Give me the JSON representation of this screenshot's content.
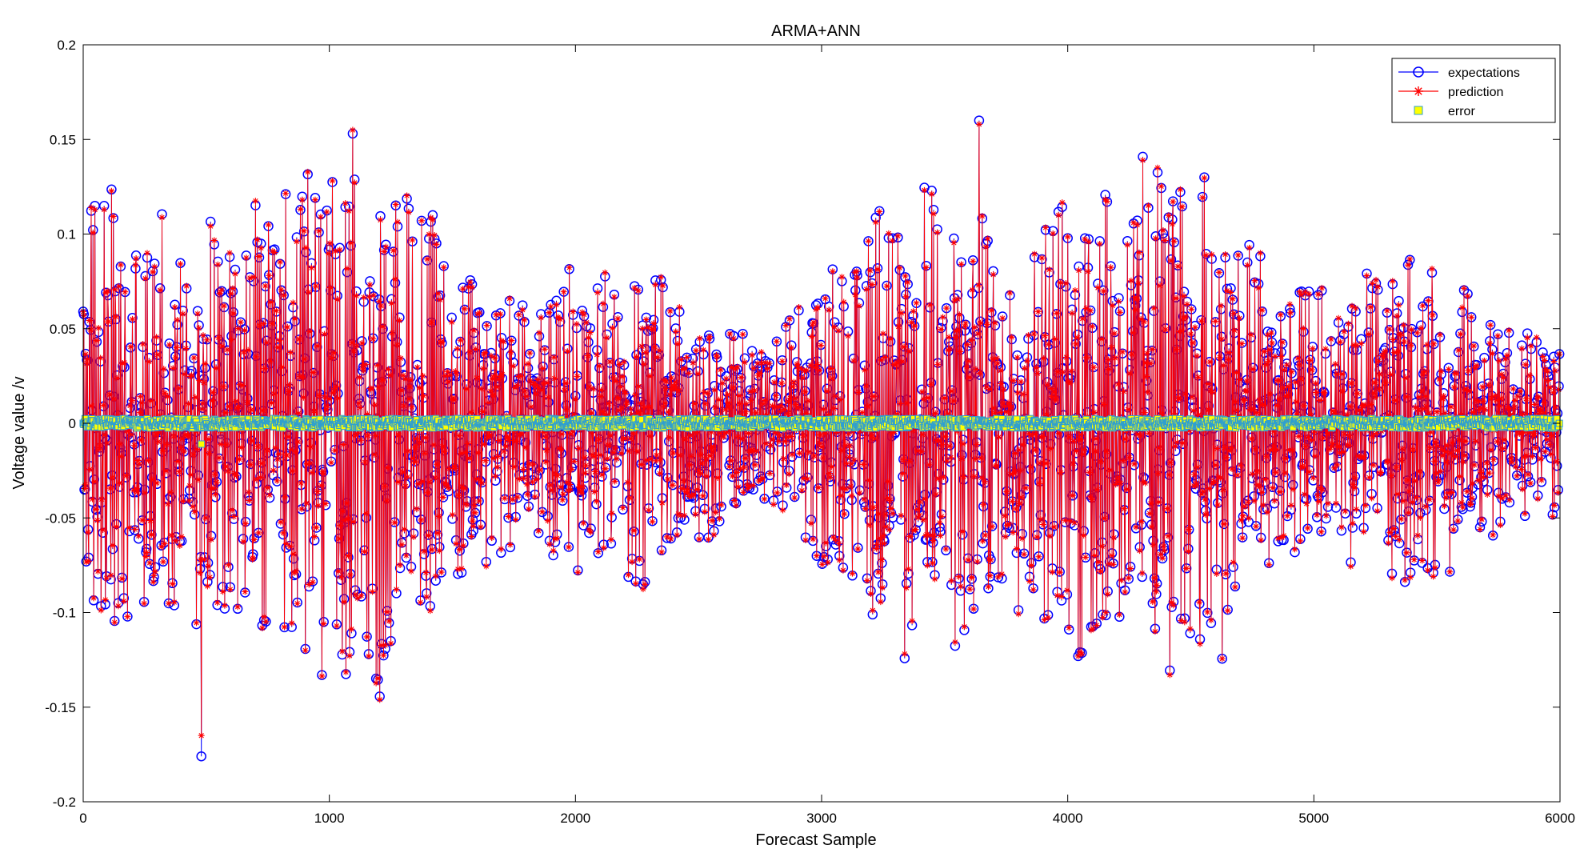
{
  "chart_data": {
    "type": "line",
    "title": "ARMA+ANN",
    "xlabel": "Forecast Sample",
    "ylabel": "Voltage value /v",
    "xlim": [
      0,
      6000
    ],
    "ylim": [
      -0.2,
      0.2
    ],
    "xticks": [
      0,
      1000,
      2000,
      3000,
      4000,
      5000,
      6000
    ],
    "yticks": [
      -0.2,
      -0.15,
      -0.1,
      -0.05,
      0,
      0.05,
      0.1,
      0.15,
      0.2
    ],
    "xtick_labels": [
      "0",
      "1000",
      "2000",
      "3000",
      "4000",
      "5000",
      "6000"
    ],
    "ytick_labels": [
      "-0.2",
      "-0.15",
      "-0.1",
      "-0.05",
      "0",
      "0.05",
      "0.1",
      "0.15",
      "0.2"
    ],
    "grid": false,
    "legend": "top-right",
    "n_samples": 6000,
    "series": [
      {
        "name": "expectations",
        "color": "#0000ff",
        "marker": "circle",
        "line": true
      },
      {
        "name": "prediction",
        "color": "#ff0000",
        "marker": "asterisk",
        "line": true
      },
      {
        "name": "error",
        "color": "#ffff00",
        "edge_color": "#2e9fd0",
        "marker": "square",
        "line": false,
        "typical_range": [
          -0.003,
          0.003
        ]
      }
    ],
    "annotations": {
      "min_expectation": {
        "x": 480,
        "y": -0.176
      },
      "min_prediction": {
        "x": 480,
        "y": -0.165
      },
      "max_expectation": {
        "x": 3640,
        "y": 0.16
      }
    }
  }
}
